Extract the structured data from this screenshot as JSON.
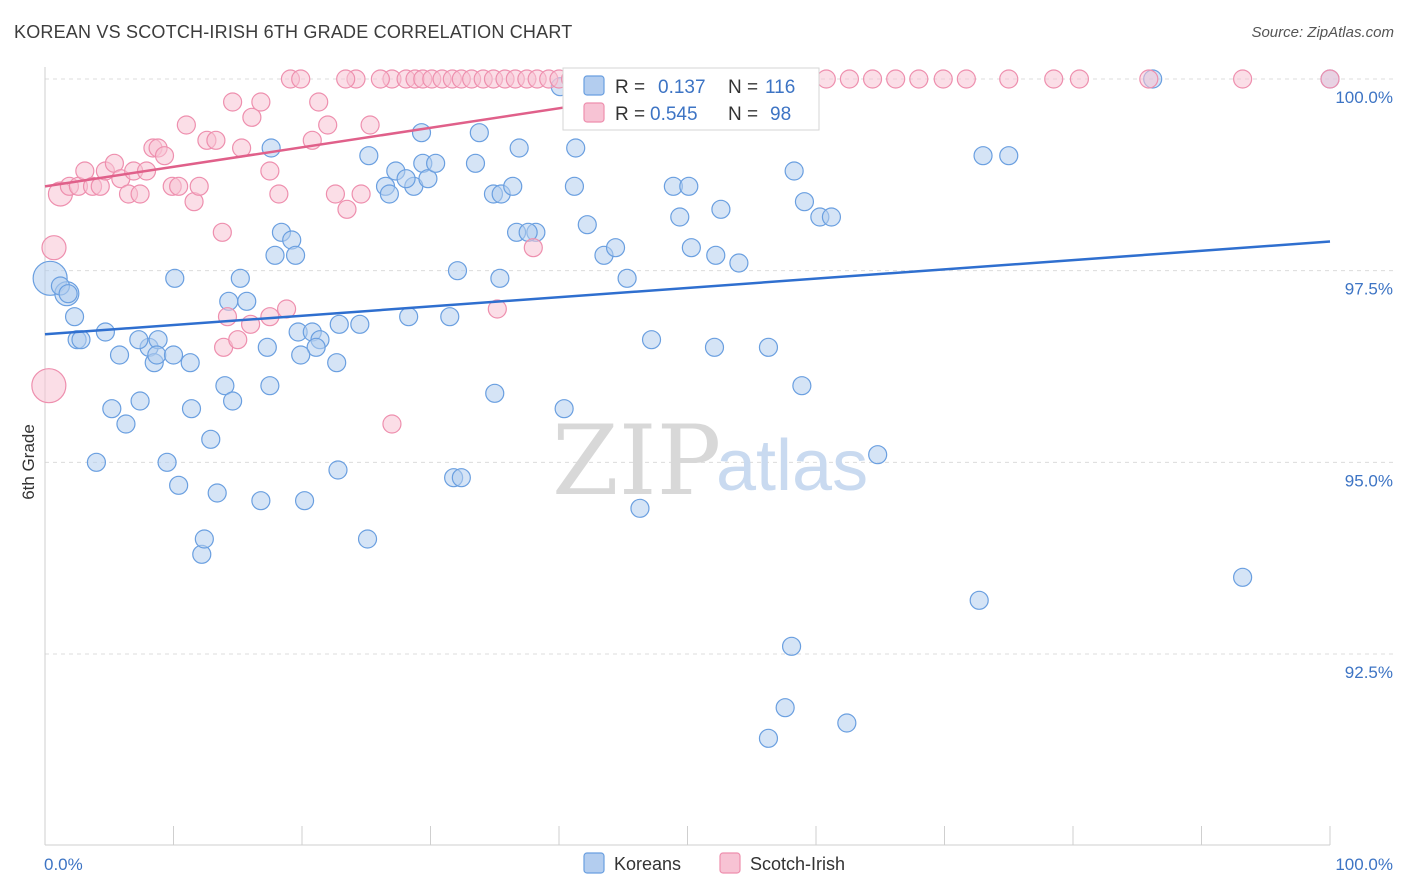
{
  "header": {
    "title": "KOREAN VS SCOTCH-IRISH 6TH GRADE CORRELATION CHART",
    "source": "Source: ZipAtlas.com"
  },
  "watermark": {
    "zip": "ZIP",
    "atlas": "atlas"
  },
  "colors": {
    "koreans": "#6a9fe0",
    "koreans_fill": "#b3cdef",
    "koreans_line": "#2f6fcf",
    "scotch_irish": "#ee8fae",
    "scotch_irish_fill": "#f7c3d4",
    "scotch_irish_line": "#e0608a",
    "tick_text": "#3d74c4",
    "grid": "#dcdcdc"
  },
  "stats_box": {
    "rows": [
      {
        "r_label": "R =",
        "r_value": "0.137",
        "n_label": "N =",
        "n_value": "116"
      },
      {
        "r_label": "R =",
        "r_value": "0.545",
        "n_label": "N =",
        "n_value": "98"
      }
    ]
  },
  "legend": {
    "items": [
      "Koreans",
      "Scotch-Irish"
    ]
  },
  "chart_data": {
    "type": "scatter",
    "title": "KOREAN VS SCOTCH-IRISH 6TH GRADE CORRELATION CHART",
    "xlabel": "",
    "ylabel": "6th Grade",
    "xlim": [
      0,
      100
    ],
    "ylim": [
      90.2,
      100.3
    ],
    "x_tick_labels": [
      "0.0%",
      "100.0%"
    ],
    "y_ticks": [
      {
        "value": 100.0,
        "label": "100.0%"
      },
      {
        "value": 97.5,
        "label": "97.5%"
      },
      {
        "value": 95.0,
        "label": "95.0%"
      },
      {
        "value": 92.5,
        "label": "92.5%"
      }
    ],
    "grid": "horizontal dashed",
    "legend_position": "bottom-center",
    "series": [
      {
        "name": "Koreans",
        "r": 0.137,
        "n": 116,
        "trend": {
          "x": [
            0,
            100
          ],
          "y": [
            96.67,
            97.88
          ]
        },
        "points": [
          [
            0.4,
            97.4,
            3
          ],
          [
            1.7,
            97.2,
            2
          ],
          [
            1.2,
            97.3,
            1
          ],
          [
            2.3,
            96.9,
            1
          ],
          [
            2.5,
            96.6,
            1
          ],
          [
            2.8,
            96.6,
            1
          ],
          [
            4.7,
            96.7,
            1
          ],
          [
            5.8,
            96.4,
            1
          ],
          [
            8.1,
            96.5,
            1
          ],
          [
            8.8,
            96.6,
            1
          ],
          [
            8.5,
            96.3,
            1
          ],
          [
            8.7,
            96.4,
            1
          ],
          [
            7.3,
            96.6,
            1
          ],
          [
            10.1,
            97.4,
            1
          ],
          [
            11.3,
            96.3,
            1
          ],
          [
            14.3,
            97.1,
            1
          ],
          [
            15.7,
            97.1,
            1
          ],
          [
            15.2,
            97.4,
            1
          ],
          [
            17.3,
            96.5,
            1
          ],
          [
            17.9,
            97.7,
            1
          ],
          [
            18.4,
            98.0,
            1
          ],
          [
            19.2,
            97.9,
            1
          ],
          [
            19.5,
            97.7,
            1
          ],
          [
            19.7,
            96.7,
            1
          ],
          [
            20.8,
            96.7,
            1
          ],
          [
            21.4,
            96.6,
            1
          ],
          [
            21.1,
            96.5,
            1
          ],
          [
            22.7,
            96.3,
            1
          ],
          [
            22.9,
            96.8,
            1
          ],
          [
            24.5,
            96.8,
            1
          ],
          [
            28.3,
            96.9,
            1
          ],
          [
            20.2,
            94.5,
            1
          ],
          [
            22.8,
            94.9,
            1
          ],
          [
            25.1,
            94.0,
            1
          ],
          [
            26.5,
            98.6,
            1
          ],
          [
            27.3,
            98.8,
            1
          ],
          [
            29.4,
            98.9,
            1
          ],
          [
            28.7,
            98.6,
            1
          ],
          [
            29.8,
            98.7,
            1
          ],
          [
            28.1,
            98.7,
            1
          ],
          [
            26.8,
            98.5,
            1
          ],
          [
            29.3,
            99.3,
            1
          ],
          [
            31.5,
            96.9,
            1
          ],
          [
            32.1,
            97.5,
            1
          ],
          [
            33.5,
            98.9,
            1
          ],
          [
            33.8,
            99.3,
            1
          ],
          [
            34.9,
            98.5,
            1
          ],
          [
            35.5,
            98.5,
            1
          ],
          [
            36.4,
            98.6,
            1
          ],
          [
            36.7,
            98.0,
            1
          ],
          [
            38.2,
            98.0,
            1
          ],
          [
            37.6,
            98.0,
            1
          ],
          [
            35.4,
            97.4,
            1
          ],
          [
            31.8,
            94.8,
            1
          ],
          [
            32.4,
            94.8,
            1
          ],
          [
            35.0,
            95.9,
            1
          ],
          [
            40.4,
            95.7,
            1
          ],
          [
            41.3,
            99.1,
            1
          ],
          [
            41.2,
            98.6,
            1
          ],
          [
            43.5,
            97.7,
            1
          ],
          [
            44.4,
            97.8,
            1
          ],
          [
            45.3,
            97.4,
            1
          ],
          [
            47.2,
            96.6,
            1
          ],
          [
            46.3,
            94.4,
            1
          ],
          [
            47.8,
            99.9,
            1
          ],
          [
            48.9,
            98.6,
            1
          ],
          [
            50.1,
            98.6,
            1
          ],
          [
            49.4,
            98.2,
            1
          ],
          [
            50.3,
            97.8,
            1
          ],
          [
            52.2,
            97.7,
            1
          ],
          [
            52.6,
            98.3,
            1
          ],
          [
            54.0,
            97.6,
            1
          ],
          [
            52.1,
            96.5,
            1
          ],
          [
            56.3,
            96.5,
            1
          ],
          [
            58.3,
            98.8,
            1
          ],
          [
            59.1,
            98.4,
            1
          ],
          [
            60.3,
            98.2,
            1
          ],
          [
            61.2,
            98.2,
            1
          ],
          [
            58.1,
            92.6,
            1
          ],
          [
            58.9,
            96.0,
            1
          ],
          [
            64.8,
            95.1,
            1
          ],
          [
            57.6,
            91.8,
            1
          ],
          [
            56.3,
            91.4,
            1
          ],
          [
            62.4,
            91.6,
            1
          ],
          [
            73.0,
            99.0,
            1
          ],
          [
            75.0,
            99.0,
            1
          ],
          [
            72.7,
            93.2,
            1
          ],
          [
            93.2,
            93.5,
            1
          ],
          [
            17.6,
            99.1,
            1
          ],
          [
            52.9,
            100.0,
            1
          ],
          [
            86.2,
            100.0,
            1
          ],
          [
            100.0,
            100.0,
            1
          ],
          [
            5.2,
            95.7,
            1
          ],
          [
            6.3,
            95.5,
            1
          ],
          [
            7.4,
            95.8,
            1
          ],
          [
            9.5,
            95.0,
            1
          ],
          [
            10.4,
            94.7,
            1
          ],
          [
            11.4,
            95.7,
            1
          ],
          [
            12.9,
            95.3,
            1
          ],
          [
            13.4,
            94.6,
            1
          ],
          [
            14.0,
            96.0,
            1
          ],
          [
            14.6,
            95.8,
            1
          ],
          [
            16.8,
            94.5,
            1
          ],
          [
            12.2,
            93.8,
            1
          ],
          [
            12.4,
            94.0,
            1
          ],
          [
            17.5,
            96.0,
            1
          ],
          [
            25.2,
            99.0,
            1
          ],
          [
            36.9,
            99.1,
            1
          ],
          [
            40.1,
            99.9,
            1
          ],
          [
            44.2,
            99.8,
            1
          ],
          [
            42.2,
            98.1,
            1
          ],
          [
            30.4,
            98.9,
            1
          ],
          [
            1.8,
            97.2,
            1
          ],
          [
            4.0,
            95.0,
            1
          ],
          [
            10.0,
            96.4,
            1
          ],
          [
            19.9,
            96.4,
            1
          ]
        ]
      },
      {
        "name": "Scotch-Irish",
        "r": 0.545,
        "n": 98,
        "trend": {
          "x": [
            0,
            55
          ],
          "y": [
            98.6,
            100.0
          ]
        },
        "points": [
          [
            0.3,
            96.0,
            3
          ],
          [
            0.7,
            97.8,
            2
          ],
          [
            1.2,
            98.5,
            2
          ],
          [
            1.9,
            98.6,
            1
          ],
          [
            2.6,
            98.6,
            1
          ],
          [
            3.1,
            98.8,
            1
          ],
          [
            3.7,
            98.6,
            1
          ],
          [
            4.3,
            98.6,
            1
          ],
          [
            4.7,
            98.8,
            1
          ],
          [
            5.4,
            98.9,
            1
          ],
          [
            5.9,
            98.7,
            1
          ],
          [
            6.5,
            98.5,
            1
          ],
          [
            6.9,
            98.8,
            1
          ],
          [
            7.4,
            98.5,
            1
          ],
          [
            7.9,
            98.8,
            1
          ],
          [
            8.4,
            99.1,
            1
          ],
          [
            8.8,
            99.1,
            1
          ],
          [
            9.3,
            99.0,
            1
          ],
          [
            9.9,
            98.6,
            1
          ],
          [
            10.4,
            98.6,
            1
          ],
          [
            11.0,
            99.4,
            1
          ],
          [
            11.6,
            98.4,
            1
          ],
          [
            12.0,
            98.6,
            1
          ],
          [
            12.6,
            99.2,
            1
          ],
          [
            13.3,
            99.2,
            1
          ],
          [
            13.8,
            98.0,
            1
          ],
          [
            14.6,
            99.7,
            1
          ],
          [
            15.3,
            99.1,
            1
          ],
          [
            16.1,
            99.5,
            1
          ],
          [
            16.8,
            99.7,
            1
          ],
          [
            17.5,
            98.8,
            1
          ],
          [
            18.2,
            98.5,
            1
          ],
          [
            19.1,
            100.0,
            1
          ],
          [
            19.9,
            100.0,
            1
          ],
          [
            20.8,
            99.2,
            1
          ],
          [
            21.3,
            99.7,
            1
          ],
          [
            22.0,
            99.4,
            1
          ],
          [
            22.6,
            98.5,
            1
          ],
          [
            23.5,
            98.3,
            1
          ],
          [
            24.6,
            98.5,
            1
          ],
          [
            25.3,
            99.4,
            1
          ],
          [
            24.2,
            100.0,
            1
          ],
          [
            23.4,
            100.0,
            1
          ],
          [
            27.0,
            100.0,
            1
          ],
          [
            26.1,
            100.0,
            1
          ],
          [
            28.1,
            100.0,
            1
          ],
          [
            28.8,
            100.0,
            1
          ],
          [
            29.4,
            100.0,
            1
          ],
          [
            30.1,
            100.0,
            1
          ],
          [
            30.9,
            100.0,
            1
          ],
          [
            31.7,
            100.0,
            1
          ],
          [
            32.4,
            100.0,
            1
          ],
          [
            33.2,
            100.0,
            1
          ],
          [
            34.1,
            100.0,
            1
          ],
          [
            34.9,
            100.0,
            1
          ],
          [
            35.8,
            100.0,
            1
          ],
          [
            36.6,
            100.0,
            1
          ],
          [
            37.5,
            100.0,
            1
          ],
          [
            38.3,
            100.0,
            1
          ],
          [
            39.2,
            100.0,
            1
          ],
          [
            40.0,
            100.0,
            1
          ],
          [
            40.9,
            100.0,
            1
          ],
          [
            41.7,
            100.0,
            1
          ],
          [
            42.6,
            100.0,
            1
          ],
          [
            43.4,
            100.0,
            1
          ],
          [
            44.3,
            100.0,
            1
          ],
          [
            45.1,
            100.0,
            1
          ],
          [
            46.3,
            100.0,
            1
          ],
          [
            47.5,
            100.0,
            1
          ],
          [
            48.9,
            100.0,
            1
          ],
          [
            50.4,
            100.0,
            1
          ],
          [
            52.0,
            100.0,
            1
          ],
          [
            53.7,
            100.0,
            1
          ],
          [
            55.4,
            100.0,
            1
          ],
          [
            57.2,
            100.0,
            1
          ],
          [
            59.0,
            100.0,
            1
          ],
          [
            60.8,
            100.0,
            1
          ],
          [
            62.6,
            100.0,
            1
          ],
          [
            64.4,
            100.0,
            1
          ],
          [
            66.2,
            100.0,
            1
          ],
          [
            68.0,
            100.0,
            1
          ],
          [
            69.9,
            100.0,
            1
          ],
          [
            71.7,
            100.0,
            1
          ],
          [
            75.0,
            100.0,
            1
          ],
          [
            78.5,
            100.0,
            1
          ],
          [
            80.5,
            100.0,
            1
          ],
          [
            85.9,
            100.0,
            1
          ],
          [
            93.2,
            100.0,
            1
          ],
          [
            100.0,
            100.0,
            1
          ],
          [
            13.9,
            96.5,
            1
          ],
          [
            15.0,
            96.6,
            1
          ],
          [
            16.0,
            96.8,
            1
          ],
          [
            17.5,
            96.9,
            1
          ],
          [
            18.8,
            97.0,
            1
          ],
          [
            14.2,
            96.9,
            1
          ],
          [
            27.0,
            95.5,
            1
          ],
          [
            35.2,
            97.0,
            1
          ],
          [
            38.0,
            97.8,
            1
          ]
        ]
      }
    ]
  }
}
